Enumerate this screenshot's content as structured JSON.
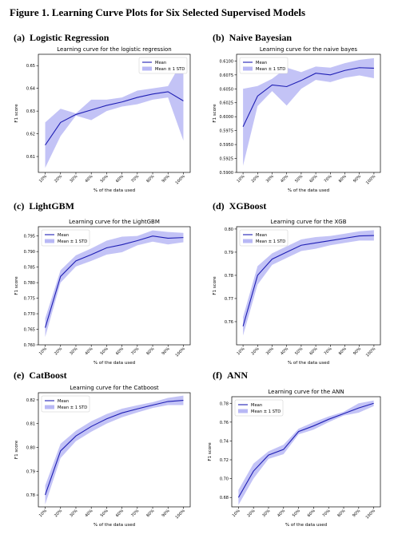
{
  "figure_title": "Figure 1. Learning Curve Plots for Six Selected Supervised Models",
  "panels": [
    {
      "label": "(a)",
      "name": "Logistic Regression"
    },
    {
      "label": "(b)",
      "name": "Naive Bayesian"
    },
    {
      "label": "(c)",
      "name": "LightGBM"
    },
    {
      "label": "(d)",
      "name": "XGBoost"
    },
    {
      "label": "(e)",
      "name": "CatBoost"
    },
    {
      "label": "(f)",
      "name": "ANN"
    }
  ],
  "colors": {
    "mean_line": "#1f1fb4",
    "std_band": "#b8b8f5"
  },
  "chart_data": [
    {
      "type": "line",
      "title": "Learning curve for the logistic regression",
      "xlabel": "% of the data used",
      "ylabel": "F1 score",
      "categories": [
        "10%",
        "20%",
        "30%",
        "40%",
        "50%",
        "60%",
        "70%",
        "80%",
        "90%",
        "100%"
      ],
      "ylim": [
        0.603,
        0.655
      ],
      "yticks": [
        "0.61",
        "0.62",
        "0.63",
        "0.64",
        "0.65"
      ],
      "yticks_values": [
        0.61,
        0.62,
        0.63,
        0.64,
        0.65
      ],
      "legend": {
        "placement": "top-right",
        "entries": [
          "Mean",
          "Mean ± 1 STD"
        ]
      },
      "series": [
        {
          "name": "Mean",
          "values": [
            0.615,
            0.625,
            0.6285,
            0.6305,
            0.6325,
            0.634,
            0.636,
            0.6375,
            0.6385,
            0.6345
          ],
          "upper": [
            0.625,
            0.631,
            0.629,
            0.635,
            0.635,
            0.636,
            0.639,
            0.64,
            0.641,
            0.653
          ],
          "lower": [
            0.605,
            0.619,
            0.628,
            0.626,
            0.63,
            0.632,
            0.633,
            0.635,
            0.636,
            0.617
          ]
        }
      ]
    },
    {
      "type": "line",
      "title": "Learning curve for the naive bayes",
      "xlabel": "% of the data used",
      "ylabel": "F1 score",
      "categories": [
        "10%",
        "20%",
        "30%",
        "40%",
        "50%",
        "60%",
        "70%",
        "80%",
        "90%",
        "100%"
      ],
      "ylim": [
        0.59,
        0.6112
      ],
      "yticks": [
        "0.5900",
        "0.5925",
        "0.5950",
        "0.5975",
        "0.6000",
        "0.6025",
        "0.6050",
        "0.6075",
        "0.6100"
      ],
      "yticks_values": [
        0.59,
        0.5925,
        0.595,
        0.5975,
        0.6,
        0.6025,
        0.605,
        0.6075,
        0.61
      ],
      "legend": {
        "placement": "top-left",
        "entries": [
          "Mean",
          "Mean ± 1 STD"
        ]
      },
      "series": [
        {
          "name": "Mean",
          "values": [
            0.5982,
            0.6037,
            0.6057,
            0.6054,
            0.6065,
            0.6078,
            0.6075,
            0.6083,
            0.6088,
            0.6087
          ],
          "upper": [
            0.605,
            0.6055,
            0.6068,
            0.6088,
            0.608,
            0.609,
            0.6088,
            0.6096,
            0.6102,
            0.6105
          ],
          "lower": [
            0.5912,
            0.6019,
            0.6046,
            0.602,
            0.605,
            0.6066,
            0.6062,
            0.607,
            0.6074,
            0.6069
          ]
        }
      ]
    },
    {
      "type": "line",
      "title": "Learning curve for the LightGBM",
      "xlabel": "% of the data used",
      "ylabel": "F1 score",
      "categories": [
        "10%",
        "20%",
        "30%",
        "40%",
        "50%",
        "60%",
        "70%",
        "80%",
        "90%",
        "100%"
      ],
      "ylim": [
        0.76,
        0.798
      ],
      "yticks": [
        "0.760",
        "0.765",
        "0.770",
        "0.775",
        "0.780",
        "0.785",
        "0.790",
        "0.795"
      ],
      "yticks_values": [
        0.76,
        0.765,
        0.77,
        0.775,
        0.78,
        0.785,
        0.79,
        0.795
      ],
      "legend": {
        "placement": "top-left",
        "entries": [
          "Mean",
          "Mean ± 1 STD"
        ]
      },
      "series": [
        {
          "name": "Mean",
          "values": [
            0.7655,
            0.782,
            0.787,
            0.789,
            0.7912,
            0.7922,
            0.7935,
            0.795,
            0.7943,
            0.7945
          ],
          "upper": [
            0.7685,
            0.784,
            0.7888,
            0.791,
            0.7935,
            0.7948,
            0.795,
            0.7968,
            0.7963,
            0.796
          ],
          "lower": [
            0.7625,
            0.78,
            0.7852,
            0.787,
            0.789,
            0.7898,
            0.792,
            0.7932,
            0.7923,
            0.793
          ]
        }
      ]
    },
    {
      "type": "line",
      "title": "Learning curve for the XGB",
      "xlabel": "% of the data used",
      "ylabel": "F1 score",
      "categories": [
        "10%",
        "20%",
        "30%",
        "40%",
        "50%",
        "60%",
        "70%",
        "80%",
        "90%",
        "100%"
      ],
      "ylim": [
        0.75,
        0.801
      ],
      "yticks": [
        "0.76",
        "0.77",
        "0.78",
        "0.79",
        "0.80"
      ],
      "yticks_values": [
        0.76,
        0.77,
        0.78,
        0.79,
        0.8
      ],
      "legend": {
        "placement": "top-left",
        "entries": [
          "Mean",
          "Mean ± 1 STD"
        ]
      },
      "series": [
        {
          "name": "Mean",
          "values": [
            0.758,
            0.78,
            0.787,
            0.79,
            0.793,
            0.794,
            0.795,
            0.796,
            0.797,
            0.7972
          ],
          "upper": [
            0.762,
            0.784,
            0.7895,
            0.7925,
            0.7955,
            0.7965,
            0.797,
            0.798,
            0.799,
            0.7995
          ],
          "lower": [
            0.754,
            0.776,
            0.7845,
            0.7875,
            0.7905,
            0.7915,
            0.793,
            0.794,
            0.795,
            0.795
          ]
        }
      ]
    },
    {
      "type": "line",
      "title": "Learning curve for the Catboost",
      "xlabel": "% of the data used",
      "ylabel": "F1 score",
      "categories": [
        "10%",
        "20%",
        "30%",
        "40%",
        "50%",
        "60%",
        "70%",
        "80%",
        "90%",
        "100%"
      ],
      "ylim": [
        0.775,
        0.823
      ],
      "yticks": [
        "0.78",
        "0.79",
        "0.80",
        "0.81",
        "0.82"
      ],
      "yticks_values": [
        0.78,
        0.79,
        0.8,
        0.81,
        0.82
      ],
      "legend": {
        "placement": "top-left",
        "entries": [
          "Mean",
          "Mean ± 1 STD"
        ]
      },
      "series": [
        {
          "name": "Mean",
          "values": [
            0.78,
            0.7985,
            0.8048,
            0.8088,
            0.812,
            0.8145,
            0.8162,
            0.8178,
            0.8193,
            0.8198
          ],
          "upper": [
            0.784,
            0.8015,
            0.807,
            0.811,
            0.814,
            0.8163,
            0.8177,
            0.819,
            0.8208,
            0.8218
          ],
          "lower": [
            0.776,
            0.7955,
            0.8026,
            0.8066,
            0.81,
            0.8127,
            0.8147,
            0.8166,
            0.8178,
            0.8178
          ]
        }
      ]
    },
    {
      "type": "line",
      "title": "Learning curve for the ANN",
      "xlabel": "% of the data used",
      "ylabel": "F1 score",
      "categories": [
        "10%",
        "20%",
        "30%",
        "40%",
        "50%",
        "60%",
        "70%",
        "80%",
        "90%",
        "100%"
      ],
      "ylim": [
        0.67,
        0.787
      ],
      "yticks": [
        "0.68",
        "0.70",
        "0.72",
        "0.74",
        "0.76",
        "0.78"
      ],
      "yticks_values": [
        0.68,
        0.7,
        0.72,
        0.74,
        0.76,
        0.78
      ],
      "legend": {
        "placement": "top-left",
        "entries": [
          "Mean",
          "Mean ± 1 STD"
        ]
      },
      "series": [
        {
          "name": "Mean",
          "values": [
            0.68,
            0.708,
            0.725,
            0.731,
            0.75,
            0.756,
            0.763,
            0.769,
            0.775,
            0.78
          ],
          "upper": [
            0.688,
            0.716,
            0.729,
            0.736,
            0.753,
            0.76,
            0.766,
            0.771,
            0.78,
            0.783
          ],
          "lower": [
            0.672,
            0.7,
            0.721,
            0.726,
            0.747,
            0.752,
            0.76,
            0.767,
            0.77,
            0.777
          ]
        }
      ]
    }
  ]
}
